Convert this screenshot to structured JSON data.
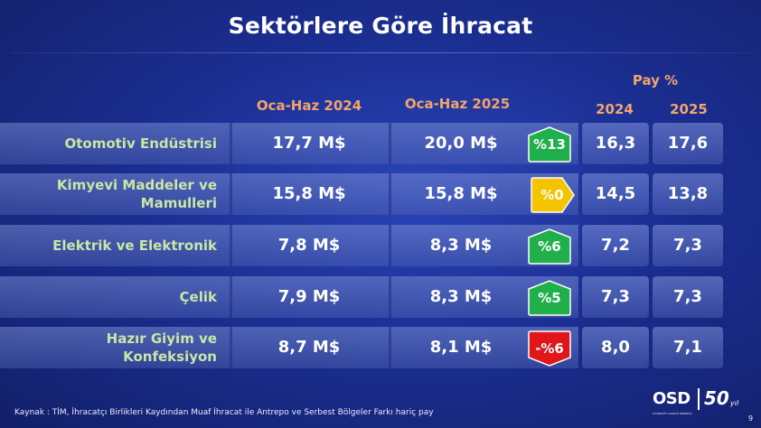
{
  "title": "Sektörlere Göre İhracat",
  "headers": {
    "col1": "Oca-Haz 2024",
    "col2": "Oca-Haz 2025",
    "pay_group": "Pay %",
    "pay_2024": "2024",
    "pay_2025": "2025"
  },
  "rows": [
    {
      "label_line1": "Otomotiv Endüstrisi",
      "label_line2": "",
      "v2024": "17,7 M$",
      "v2025": "20,0 M$",
      "change": "%13",
      "trend": "up",
      "pay2024": "16,3",
      "pay2025": "17,6"
    },
    {
      "label_line1": "Kimyevi Maddeler ve",
      "label_line2": "Mamulleri",
      "v2024": "15,8 M$",
      "v2025": "15,8 M$",
      "change": "%0",
      "trend": "flat",
      "pay2024": "14,5",
      "pay2025": "13,8"
    },
    {
      "label_line1": "Elektrik ve Elektronik",
      "label_line2": "",
      "v2024": "7,8 M$",
      "v2025": "8,3 M$",
      "change": "%6",
      "trend": "up",
      "pay2024": "7,2",
      "pay2025": "7,3"
    },
    {
      "label_line1": "Çelik",
      "label_line2": "",
      "v2024": "7,9 M$",
      "v2025": "8,3 M$",
      "change": "%5",
      "trend": "up",
      "pay2024": "7,3",
      "pay2025": "7,3"
    },
    {
      "label_line1": "Hazır Giyim ve",
      "label_line2": "Konfeksiyon",
      "v2024": "8,7 M$",
      "v2025": "8,1 M$",
      "change": "-%6",
      "trend": "down",
      "pay2024": "8,0",
      "pay2025": "7,1"
    }
  ],
  "colors": {
    "up": "#1fb04b",
    "flat": "#f5c400",
    "down": "#e0161b",
    "header": "#f3a46a",
    "label": "#c9e7a4"
  },
  "source": "Kaynak : TİM, İhracatçı Birlikleri Kaydından Muaf İhracat ile Antrepo ve Serbest Bölgeler Farkı hariç pay",
  "logo": {
    "brand": "OSD",
    "anniversary": "50",
    "yil": "yıl",
    "subtitle": "OTOMOTİV SANAYİİ DERNEĞİ"
  },
  "page_number": "9"
}
